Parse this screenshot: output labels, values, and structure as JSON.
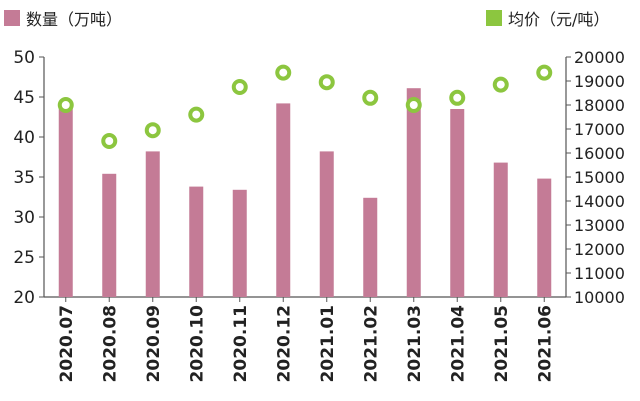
{
  "chart_data": {
    "type": "bar",
    "categories": [
      "2020.07",
      "2020.08",
      "2020.09",
      "2020.10",
      "2020.11",
      "2020.12",
      "2021.01",
      "2021.02",
      "2021.03",
      "2021.04",
      "2021.05",
      "2021.06"
    ],
    "series": [
      {
        "name": "数量（万吨）",
        "type": "bar",
        "axis": "left",
        "values": [
          44,
          35.4,
          38.2,
          33.8,
          33.4,
          44.2,
          38.2,
          32.4,
          46.1,
          43.5,
          36.8,
          34.8
        ]
      },
      {
        "name": "均价（元/吨）",
        "type": "scatter",
        "axis": "right",
        "values": [
          18000,
          16500,
          16950,
          17600,
          18750,
          19350,
          18950,
          18300,
          18000,
          18300,
          18850,
          19350
        ]
      }
    ],
    "ylim_left": [
      20,
      50
    ],
    "yticks_left": [
      "20",
      "25",
      "30",
      "35",
      "40",
      "45",
      "50"
    ],
    "ylim_right": [
      10000,
      20000
    ],
    "yticks_right": [
      "10000",
      "11000",
      "12000",
      "13000",
      "14000",
      "15000",
      "16000",
      "17000",
      "18000",
      "19000",
      "20000"
    ],
    "colors": {
      "bar": "#c47b96",
      "marker": "#8cc63f",
      "axis": "#555555"
    },
    "legend_position": "top",
    "grid": false
  },
  "legend": {
    "qty_label": "数量（万吨）",
    "price_label": "均价（元/吨）"
  }
}
